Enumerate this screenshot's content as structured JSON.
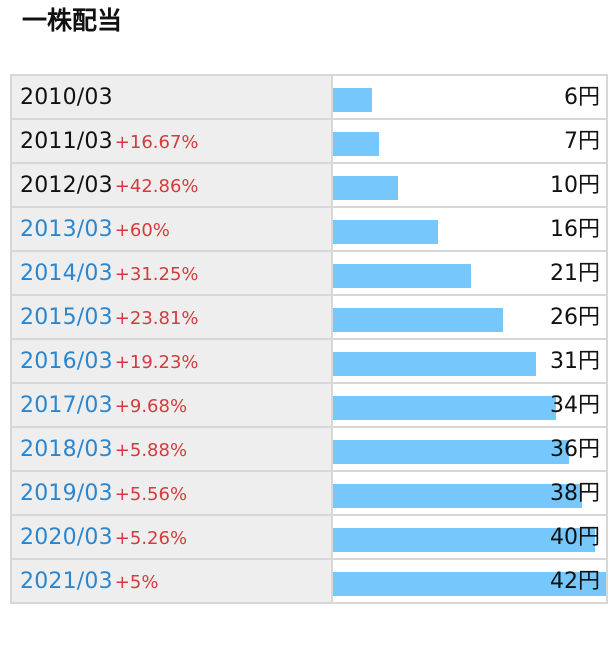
{
  "title": "一株配当",
  "chart_data": {
    "type": "bar",
    "orientation": "horizontal",
    "title": "一株配当",
    "categories": [
      "2010/03",
      "2011/03",
      "2012/03",
      "2013/03",
      "2014/03",
      "2015/03",
      "2016/03",
      "2017/03",
      "2018/03",
      "2019/03",
      "2020/03",
      "2021/03"
    ],
    "values": [
      6,
      7,
      10,
      16,
      21,
      26,
      31,
      34,
      36,
      38,
      40,
      42
    ],
    "unit": "円",
    "growth_labels": [
      "",
      "+16.67%",
      "+42.86%",
      "+60%",
      "+31.25%",
      "+23.81%",
      "+19.23%",
      "+9.68%",
      "+5.88%",
      "+5.56%",
      "+5.26%",
      "+5%"
    ],
    "linked": [
      false,
      false,
      false,
      true,
      true,
      true,
      true,
      true,
      true,
      true,
      true,
      true
    ],
    "xlim": [
      0,
      42
    ],
    "colors": {
      "bar": "#76c7fb",
      "year_plain": "#111111",
      "year_link": "#2a86cf",
      "growth": "#d23c3c"
    }
  }
}
